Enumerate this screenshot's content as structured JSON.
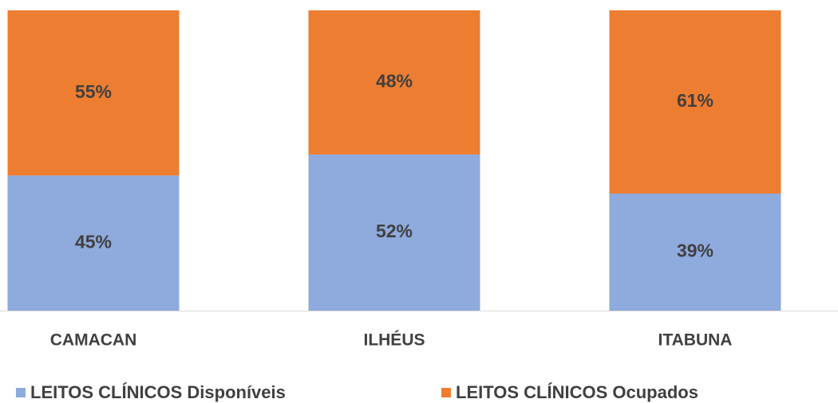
{
  "chart_data": {
    "type": "stacked_bar",
    "categories": [
      "CAMACAN",
      "ILHÉUS",
      "ITABUNA"
    ],
    "series": [
      {
        "name": "LEITOS CLÍNICOS Disponíveis",
        "color": "#8faadc",
        "values": [
          45,
          52,
          39
        ],
        "value_labels": [
          "45%",
          "52%",
          "39%"
        ]
      },
      {
        "name": "LEITOS CLÍNICOS Ocupados",
        "color": "#ed7d31",
        "values": [
          55,
          48,
          61
        ],
        "value_labels": [
          "55%",
          "48%",
          "61%"
        ]
      }
    ],
    "ylim": [
      0,
      100
    ],
    "legend": "bottom"
  }
}
